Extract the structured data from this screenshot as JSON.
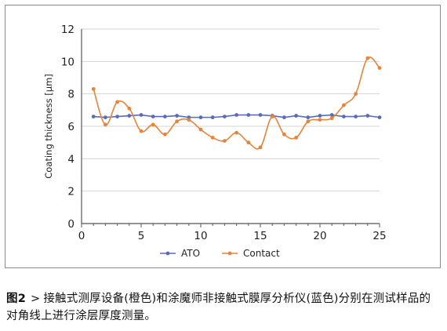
{
  "chart_data": {
    "type": "line",
    "ylabel": "Coating thickness [μm]",
    "xlabel": "",
    "xlim": [
      0,
      25
    ],
    "ylim": [
      0,
      12
    ],
    "x_ticks": [
      0,
      5,
      10,
      15,
      20,
      25
    ],
    "y_ticks": [
      0,
      2,
      4,
      6,
      8,
      10,
      12
    ],
    "grid": "horizontal",
    "legend_position": "bottom",
    "series": [
      {
        "name": "ATO",
        "color": "#5a6cb8",
        "smooth": false,
        "points": [
          [
            1,
            6.6
          ],
          [
            2,
            6.55
          ],
          [
            3,
            6.6
          ],
          [
            4,
            6.65
          ],
          [
            5,
            6.7
          ],
          [
            6,
            6.6
          ],
          [
            7,
            6.6
          ],
          [
            8,
            6.65
          ],
          [
            9,
            6.55
          ],
          [
            10,
            6.55
          ],
          [
            11,
            6.55
          ],
          [
            12,
            6.6
          ],
          [
            13,
            6.7
          ],
          [
            14,
            6.7
          ],
          [
            15,
            6.7
          ],
          [
            16,
            6.65
          ],
          [
            17,
            6.55
          ],
          [
            18,
            6.65
          ],
          [
            19,
            6.55
          ],
          [
            20,
            6.65
          ],
          [
            21,
            6.7
          ],
          [
            22,
            6.6
          ],
          [
            23,
            6.6
          ],
          [
            24,
            6.65
          ],
          [
            25,
            6.55
          ]
        ]
      },
      {
        "name": "Contact",
        "color": "#e8833a",
        "smooth": true,
        "points": [
          [
            1,
            8.3
          ],
          [
            2,
            6.1
          ],
          [
            3,
            7.5
          ],
          [
            4,
            7.1
          ],
          [
            5,
            5.7
          ],
          [
            6,
            6.1
          ],
          [
            7,
            5.5
          ],
          [
            8,
            6.3
          ],
          [
            9,
            6.4
          ],
          [
            10,
            5.8
          ],
          [
            11,
            5.3
          ],
          [
            12,
            5.1
          ],
          [
            13,
            5.6
          ],
          [
            14,
            5.0
          ],
          [
            15,
            4.7
          ],
          [
            16,
            6.6
          ],
          [
            17,
            5.5
          ],
          [
            18,
            5.3
          ],
          [
            19,
            6.3
          ],
          [
            20,
            6.4
          ],
          [
            21,
            6.5
          ],
          [
            22,
            7.3
          ],
          [
            23,
            8.0
          ],
          [
            24,
            10.2
          ],
          [
            25,
            9.6
          ]
        ]
      }
    ]
  },
  "caption": {
    "figure_label": "图2",
    "separator": ">",
    "text": "接触式测厚设备(橙色)和涂魔师非接触式膜厚分析仪(蓝色)分别在测试样品的对角线上进行涂层厚度测量。"
  }
}
